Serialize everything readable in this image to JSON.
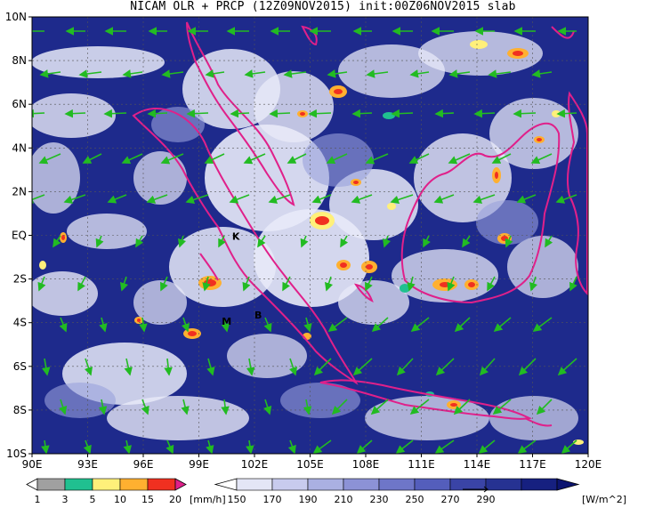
{
  "title": "NICAM OLR + PRCP (12Z09NOV2015) init:00Z06NOV2015 slab",
  "map": {
    "lon_range": [
      90,
      120
    ],
    "lat_range": [
      -10,
      10
    ],
    "lat_labels": [
      "10N",
      "8N",
      "6N",
      "4N",
      "2N",
      "EQ",
      "2S",
      "4S",
      "6S",
      "8S",
      "10S"
    ],
    "lon_labels": [
      "90E",
      "93E",
      "96E",
      "99E",
      "102E",
      "105E",
      "108E",
      "111E",
      "114E",
      "117E",
      "120E"
    ],
    "place_markers": [
      {
        "label": "K",
        "lon": 101.0,
        "lat": -0.2
      },
      {
        "label": "M",
        "lon": 100.5,
        "lat": -4.1
      },
      {
        "label": "B",
        "lon": 102.2,
        "lat": -3.8
      }
    ],
    "colors": {
      "olr_background": "#1e2a8c",
      "coastline": "#e0208a",
      "wind_vector": "#22bb22",
      "grid": "#555555"
    }
  },
  "precip_colorbar": {
    "tick_labels": [
      "1",
      "3",
      "5",
      "10",
      "15",
      "20"
    ],
    "unit": "[mm/h]",
    "colors": [
      "#a0a0a0",
      "#20c090",
      "#fff07a",
      "#ffb030",
      "#f03020",
      "#e0208a"
    ]
  },
  "olr_colorbar": {
    "tick_labels": [
      "150",
      "170",
      "190",
      "210",
      "230",
      "250",
      "270",
      "290"
    ],
    "unit": "[W/m^2]",
    "colors": [
      "#ffffff",
      "#e4e6f6",
      "#c8cbee",
      "#aab0e2",
      "#8c92d6",
      "#6e76c8",
      "#545ebc",
      "#3a44a6",
      "#263292",
      "#162080",
      "#0c1470"
    ]
  }
}
